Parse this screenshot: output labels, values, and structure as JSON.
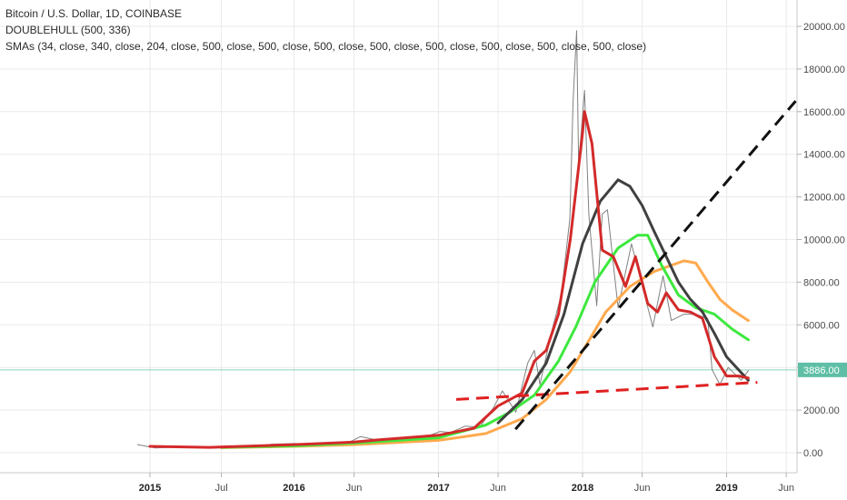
{
  "legend": {
    "line1": "Bitcoin / U.S. Dollar, 1D, COINBASE",
    "line2": "DOUBLEHULL (500, 336)",
    "line3": "SMAs (34, close, 340, close, 204, close, 500, close, 500, close, 500, close, 500, close, 500, close, 500, close, 500, close, 500, close)"
  },
  "colors": {
    "price": "#6b6b6b",
    "sma34": "#d42a2a",
    "sma340": "#ffa94d",
    "sma204": "#3ee83e",
    "hull": "#404040",
    "support": "#e02020",
    "trend": "#111111",
    "current_price_bg": "#5fbfa6",
    "grid": "#eaeaea"
  },
  "chart_data": {
    "type": "line",
    "title": "Bitcoin / U.S. Dollar, 1D, COINBASE",
    "ylim": [
      -1000,
      20500
    ],
    "y_ticks": [
      "0.00",
      "2000.00",
      "4000.00",
      "6000.00",
      "8000.00",
      "10000.00",
      "12000.00",
      "14000.00",
      "16000.00",
      "18000.00",
      "20000.00"
    ],
    "x_ticks": [
      {
        "label": "2015",
        "date": "2015-01-01",
        "bold": true
      },
      {
        "label": "Jul",
        "date": "2015-07-01",
        "bold": false
      },
      {
        "label": "2016",
        "date": "2016-01-01",
        "bold": true
      },
      {
        "label": "Jun",
        "date": "2016-06-01",
        "bold": false
      },
      {
        "label": "2017",
        "date": "2017-01-01",
        "bold": true
      },
      {
        "label": "Jun",
        "date": "2017-06-01",
        "bold": false
      },
      {
        "label": "2018",
        "date": "2018-01-01",
        "bold": true
      },
      {
        "label": "Jun",
        "date": "2018-06-01",
        "bold": false
      },
      {
        "label": "2019",
        "date": "2019-01-01",
        "bold": true
      },
      {
        "label": "Jun",
        "date": "2019-06-01",
        "bold": false
      }
    ],
    "current_price": {
      "label": "3886.00",
      "value": 3886
    },
    "series": [
      {
        "name": "close",
        "key": "price",
        "points": [
          [
            "2014-12-01",
            380
          ],
          [
            "2015-01-15",
            220
          ],
          [
            "2015-03-01",
            260
          ],
          [
            "2015-05-01",
            235
          ],
          [
            "2015-07-01",
            270
          ],
          [
            "2015-09-01",
            235
          ],
          [
            "2015-11-05",
            400
          ],
          [
            "2016-01-01",
            430
          ],
          [
            "2016-03-01",
            415
          ],
          [
            "2016-05-15",
            450
          ],
          [
            "2016-06-18",
            760
          ],
          [
            "2016-08-01",
            580
          ],
          [
            "2016-10-01",
            610
          ],
          [
            "2016-12-01",
            750
          ],
          [
            "2017-01-05",
            1000
          ],
          [
            "2017-02-01",
            950
          ],
          [
            "2017-03-10",
            1250
          ],
          [
            "2017-04-15",
            1200
          ],
          [
            "2017-05-20",
            2100
          ],
          [
            "2017-06-12",
            2900
          ],
          [
            "2017-07-16",
            1900
          ],
          [
            "2017-08-15",
            4200
          ],
          [
            "2017-09-01",
            4800
          ],
          [
            "2017-09-15",
            3200
          ],
          [
            "2017-10-15",
            5700
          ],
          [
            "2017-11-08",
            7400
          ],
          [
            "2017-11-30",
            11000
          ],
          [
            "2017-12-08",
            16500
          ],
          [
            "2017-12-17",
            19800
          ],
          [
            "2017-12-22",
            13500
          ],
          [
            "2018-01-06",
            17000
          ],
          [
            "2018-01-17",
            11200
          ],
          [
            "2018-02-06",
            6900
          ],
          [
            "2018-02-20",
            11200
          ],
          [
            "2018-03-05",
            11400
          ],
          [
            "2018-04-01",
            6800
          ],
          [
            "2018-05-05",
            9800
          ],
          [
            "2018-06-28",
            5900
          ],
          [
            "2018-07-24",
            8300
          ],
          [
            "2018-08-14",
            6200
          ],
          [
            "2018-09-15",
            6500
          ],
          [
            "2018-10-15",
            6500
          ],
          [
            "2018-11-14",
            6300
          ],
          [
            "2018-11-25",
            3900
          ],
          [
            "2018-12-15",
            3200
          ],
          [
            "2019-01-05",
            4000
          ],
          [
            "2019-02-07",
            3400
          ],
          [
            "2019-02-25",
            3850
          ]
        ]
      },
      {
        "name": "SMA 34",
        "key": "sma34",
        "points": [
          [
            "2015-01-01",
            300
          ],
          [
            "2015-06-01",
            250
          ],
          [
            "2016-01-01",
            380
          ],
          [
            "2016-06-01",
            500
          ],
          [
            "2016-08-01",
            600
          ],
          [
            "2017-01-01",
            820
          ],
          [
            "2017-04-01",
            1150
          ],
          [
            "2017-06-01",
            2200
          ],
          [
            "2017-08-01",
            2800
          ],
          [
            "2017-09-01",
            4300
          ],
          [
            "2017-10-01",
            4800
          ],
          [
            "2017-11-01",
            6500
          ],
          [
            "2017-12-01",
            10000
          ],
          [
            "2018-01-01",
            15000
          ],
          [
            "2018-01-06",
            16000
          ],
          [
            "2018-01-25",
            14500
          ],
          [
            "2018-02-20",
            9500
          ],
          [
            "2018-03-20",
            9200
          ],
          [
            "2018-04-20",
            7800
          ],
          [
            "2018-05-15",
            9200
          ],
          [
            "2018-06-15",
            7000
          ],
          [
            "2018-07-10",
            6600
          ],
          [
            "2018-08-01",
            7500
          ],
          [
            "2018-09-01",
            6700
          ],
          [
            "2018-10-01",
            6600
          ],
          [
            "2018-11-01",
            6300
          ],
          [
            "2018-12-01",
            4500
          ],
          [
            "2019-01-01",
            3600
          ],
          [
            "2019-02-01",
            3600
          ],
          [
            "2019-02-25",
            3500
          ]
        ]
      },
      {
        "name": "SMA 340",
        "key": "sma340",
        "points": [
          [
            "2015-07-01",
            240
          ],
          [
            "2016-01-01",
            300
          ],
          [
            "2016-06-01",
            380
          ],
          [
            "2017-01-01",
            580
          ],
          [
            "2017-05-01",
            900
          ],
          [
            "2017-08-01",
            1600
          ],
          [
            "2017-10-01",
            2500
          ],
          [
            "2017-12-01",
            3800
          ],
          [
            "2018-01-15",
            5200
          ],
          [
            "2018-03-01",
            6600
          ],
          [
            "2018-05-01",
            7800
          ],
          [
            "2018-07-01",
            8500
          ],
          [
            "2018-09-15",
            9000
          ],
          [
            "2018-10-15",
            8900
          ],
          [
            "2018-11-15",
            8000
          ],
          [
            "2018-12-15",
            7200
          ],
          [
            "2019-01-15",
            6700
          ],
          [
            "2019-02-25",
            6200
          ]
        ]
      },
      {
        "name": "SMA 204",
        "key": "sma204",
        "points": [
          [
            "2015-07-01",
            250
          ],
          [
            "2016-01-01",
            320
          ],
          [
            "2016-06-01",
            450
          ],
          [
            "2017-01-01",
            700
          ],
          [
            "2017-05-01",
            1300
          ],
          [
            "2017-07-01",
            1900
          ],
          [
            "2017-09-01",
            2700
          ],
          [
            "2017-11-01",
            4300
          ],
          [
            "2017-12-15",
            5900
          ],
          [
            "2018-02-01",
            8000
          ],
          [
            "2018-04-01",
            9600
          ],
          [
            "2018-05-20",
            10200
          ],
          [
            "2018-06-15",
            10200
          ],
          [
            "2018-07-20",
            8800
          ],
          [
            "2018-09-01",
            7400
          ],
          [
            "2018-10-15",
            6800
          ],
          [
            "2018-12-01",
            6500
          ],
          [
            "2019-01-15",
            5800
          ],
          [
            "2019-02-25",
            5300
          ]
        ]
      },
      {
        "name": "DOUBLEHULL",
        "key": "hull",
        "points": [
          [
            "2017-06-01",
            1400
          ],
          [
            "2017-08-01",
            2500
          ],
          [
            "2017-10-01",
            4200
          ],
          [
            "2017-11-15",
            6500
          ],
          [
            "2018-01-01",
            9800
          ],
          [
            "2018-02-15",
            11800
          ],
          [
            "2018-04-01",
            12800
          ],
          [
            "2018-05-01",
            12500
          ],
          [
            "2018-06-01",
            11600
          ],
          [
            "2018-07-01",
            10400
          ],
          [
            "2018-08-01",
            9200
          ],
          [
            "2018-09-01",
            8000
          ],
          [
            "2018-10-01",
            7200
          ],
          [
            "2018-11-01",
            6600
          ],
          [
            "2018-12-01",
            5600
          ],
          [
            "2019-01-01",
            4500
          ],
          [
            "2019-02-25",
            3400
          ]
        ]
      },
      {
        "name": "support",
        "key": "support",
        "dashed": true,
        "points": [
          [
            "2017-02-15",
            2500
          ],
          [
            "2019-03-20",
            3300
          ]
        ]
      },
      {
        "name": "trend",
        "key": "trend",
        "dashed": true,
        "points": [
          [
            "2017-07-15",
            1100
          ],
          [
            "2019-06-25",
            16500
          ]
        ]
      }
    ]
  }
}
